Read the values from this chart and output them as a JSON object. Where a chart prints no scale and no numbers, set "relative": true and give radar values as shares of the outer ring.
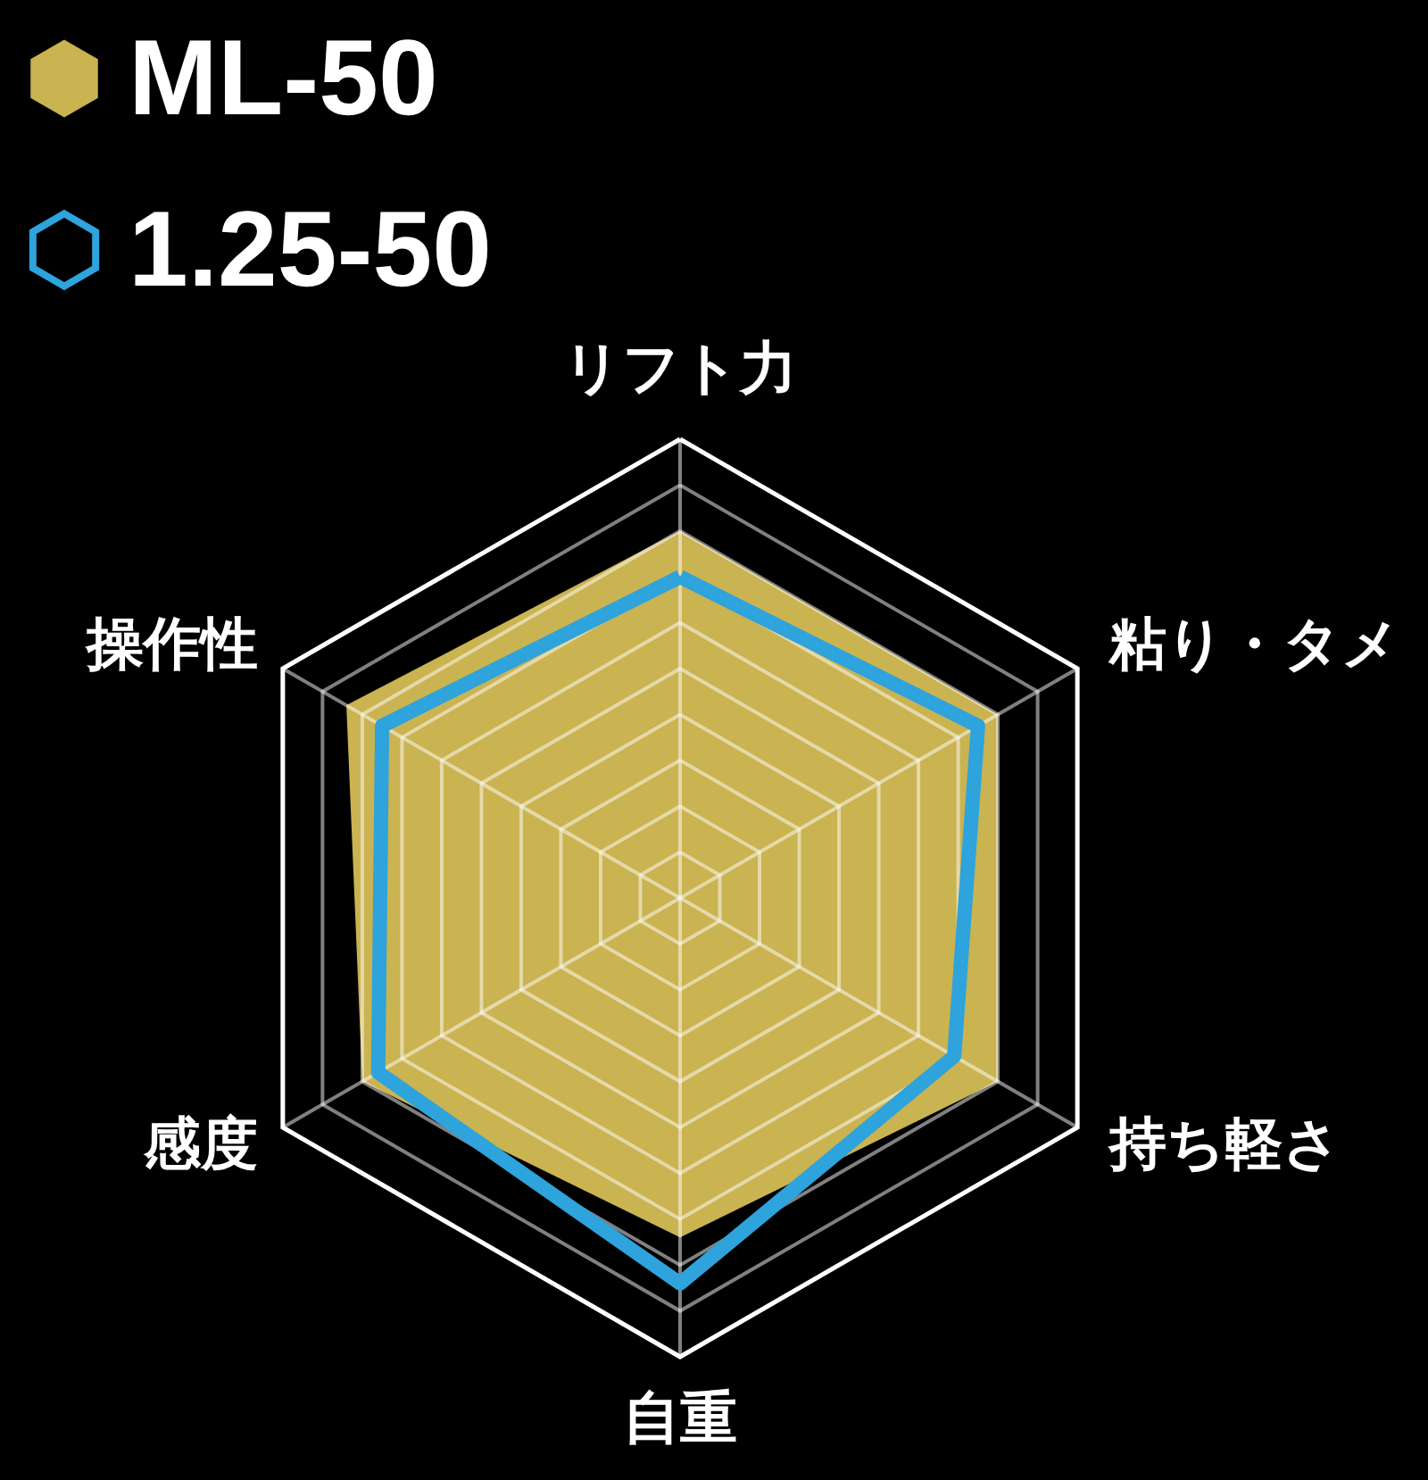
{
  "chart_data": {
    "type": "radar",
    "categories": [
      "リフト力",
      "粘り・タメ",
      "持ち軽さ",
      "自重",
      "感度",
      "操作性"
    ],
    "relative": true,
    "series": [
      {
        "name": "ML-50",
        "color": "#cab351",
        "values": [
          0.8,
          0.8,
          0.8,
          0.74,
          0.8,
          0.84
        ]
      },
      {
        "name": "1.25-50",
        "color": "#2ea3dc",
        "values": [
          0.7,
          0.75,
          0.69,
          0.84,
          0.76,
          0.75
        ]
      }
    ],
    "grid": true,
    "legend": "top left"
  }
}
